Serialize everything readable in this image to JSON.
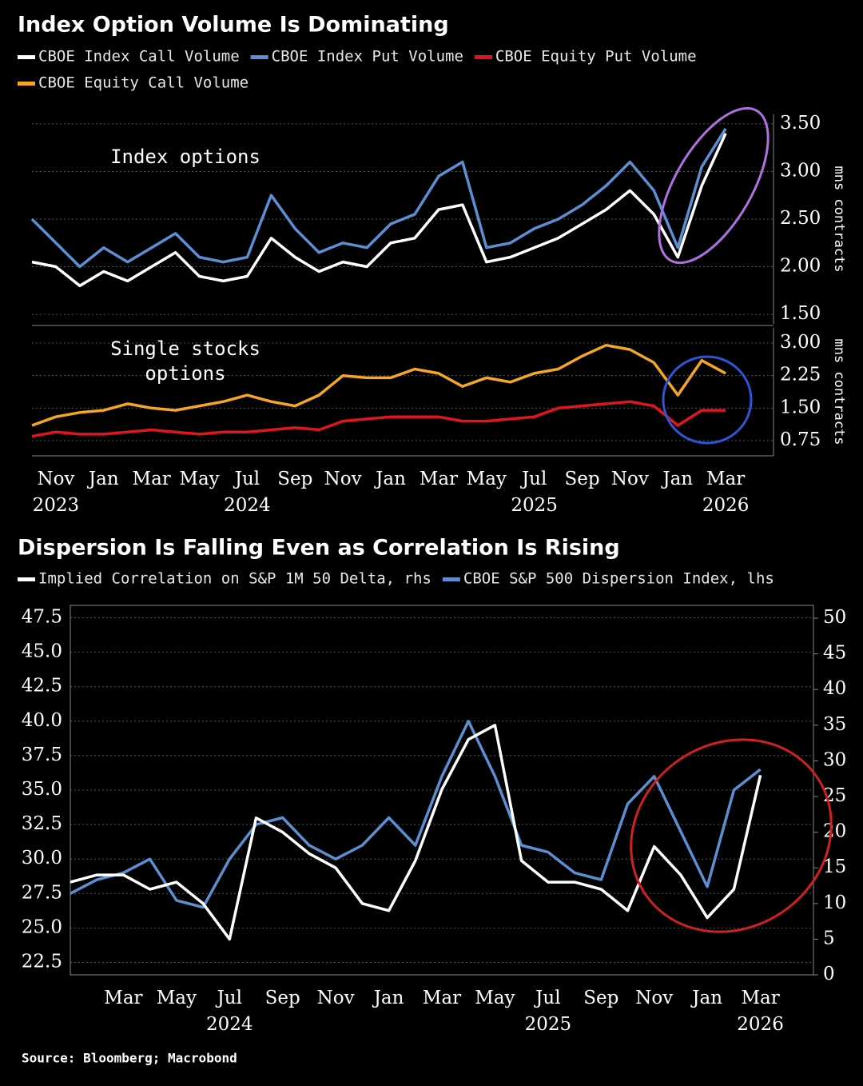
{
  "chart_data": [
    {
      "type": "line",
      "title": "Index Option Volume Is Dominating",
      "x": [
        "2023-10",
        "2023-11",
        "2023-12",
        "2024-01",
        "2024-02",
        "2024-03",
        "2024-04",
        "2024-05",
        "2024-06",
        "2024-07",
        "2024-08",
        "2024-09",
        "2024-10",
        "2024-11",
        "2024-12",
        "2025-01",
        "2025-02",
        "2025-03",
        "2025-04",
        "2025-05",
        "2025-06",
        "2025-07",
        "2025-08",
        "2025-09",
        "2025-10",
        "2025-11",
        "2025-12",
        "2026-01",
        "2026-02",
        "2026-03"
      ],
      "xlim": [
        "2023-10",
        "2026-05"
      ],
      "xticks": [
        {
          "value": "2023-11",
          "label": "Nov"
        },
        {
          "value": "2024-01",
          "label": "Jan"
        },
        {
          "value": "2024-03",
          "label": "Mar"
        },
        {
          "value": "2024-05",
          "label": "May"
        },
        {
          "value": "2024-07",
          "label": "Jul"
        },
        {
          "value": "2024-09",
          "label": "Sep"
        },
        {
          "value": "2024-11",
          "label": "Nov"
        },
        {
          "value": "2025-01",
          "label": "Jan"
        },
        {
          "value": "2025-03",
          "label": "Mar"
        },
        {
          "value": "2025-05",
          "label": "May"
        },
        {
          "value": "2025-07",
          "label": "Jul"
        },
        {
          "value": "2025-09",
          "label": "Sep"
        },
        {
          "value": "2025-11",
          "label": "Nov"
        },
        {
          "value": "2026-01",
          "label": "Jan"
        },
        {
          "value": "2026-03",
          "label": "Mar"
        }
      ],
      "year_labels": [
        {
          "value": "2023-11",
          "label": "2023"
        },
        {
          "value": "2024-07",
          "label": "2024"
        },
        {
          "value": "2025-07",
          "label": "2025"
        },
        {
          "value": "2026-03",
          "label": "2026"
        }
      ],
      "grid": true,
      "panels": [
        {
          "annotation": [
            "Index options"
          ],
          "y_label": "mns contracts",
          "ylim": [
            1.4,
            3.6
          ],
          "yticks": [
            {
              "value": 1.5,
              "label": "1.50"
            },
            {
              "value": 2,
              "label": "2.00"
            },
            {
              "value": 2.5,
              "label": "2.50"
            },
            {
              "value": 3,
              "label": "3.00"
            },
            {
              "value": 3.5,
              "label": "3.50"
            }
          ],
          "series": [
            {
              "name": "CBOE Index Put Volume",
              "color": "#5b8fd1",
              "values": [
                2.5,
                2.25,
                2.0,
                2.2,
                2.05,
                2.2,
                2.35,
                2.1,
                2.05,
                2.1,
                2.75,
                2.4,
                2.15,
                2.25,
                2.2,
                2.45,
                2.55,
                2.95,
                3.1,
                2.2,
                2.25,
                2.4,
                2.5,
                2.65,
                2.85,
                3.1,
                2.8,
                2.2,
                3.05,
                3.45
              ]
            },
            {
              "name": "CBOE Index Call Volume",
              "color": "#ffffff",
              "values": [
                2.05,
                2.0,
                1.8,
                1.95,
                1.85,
                2.0,
                2.15,
                1.9,
                1.85,
                1.9,
                2.3,
                2.1,
                1.95,
                2.05,
                2.0,
                2.25,
                2.3,
                2.6,
                2.65,
                2.05,
                2.1,
                2.2,
                2.3,
                2.45,
                2.6,
                2.8,
                2.55,
                2.1,
                2.85,
                3.4
              ]
            }
          ]
        },
        {
          "annotation": [
            "Single stocks",
            "options"
          ],
          "y_label": "mns contracts",
          "ylim": [
            0.4,
            3.35
          ],
          "yticks": [
            {
              "value": 0.75,
              "label": "0.75"
            },
            {
              "value": 1.5,
              "label": "1.50"
            },
            {
              "value": 2.25,
              "label": "2.25"
            },
            {
              "value": 3,
              "label": "3.00"
            }
          ],
          "series": [
            {
              "name": "CBOE Equity Put Volume",
              "color": "#e0161e",
              "values": [
                0.85,
                0.95,
                0.9,
                0.9,
                0.95,
                1.0,
                0.95,
                0.9,
                0.95,
                0.95,
                1.0,
                1.05,
                1.0,
                1.2,
                1.25,
                1.3,
                1.3,
                1.3,
                1.2,
                1.2,
                1.25,
                1.3,
                1.5,
                1.55,
                1.6,
                1.65,
                1.55,
                1.1,
                1.45,
                1.45
              ]
            },
            {
              "name": "CBOE Equity Call Volume",
              "color": "#f5a623",
              "values": [
                1.1,
                1.3,
                1.4,
                1.45,
                1.6,
                1.5,
                1.45,
                1.55,
                1.65,
                1.8,
                1.65,
                1.55,
                1.8,
                2.25,
                2.2,
                2.2,
                2.4,
                2.3,
                2.0,
                2.2,
                2.1,
                2.3,
                2.4,
                2.7,
                2.95,
                2.85,
                2.55,
                1.8,
                2.6,
                2.3
              ]
            }
          ]
        }
      ],
      "legend_order": [
        "0.0.1",
        "0.0.0",
        "0.1.0",
        "0.1.1"
      ]
    },
    {
      "type": "line",
      "title": "Dispersion Is Falling Even as Correlation Is Rising",
      "x": [
        "2024-01",
        "2024-02",
        "2024-03",
        "2024-04",
        "2024-05",
        "2024-06",
        "2024-07",
        "2024-08",
        "2024-09",
        "2024-10",
        "2024-11",
        "2024-12",
        "2025-01",
        "2025-02",
        "2025-03",
        "2025-04",
        "2025-05",
        "2025-06",
        "2025-07",
        "2025-08",
        "2025-09",
        "2025-10",
        "2025-11",
        "2025-12",
        "2026-01",
        "2026-02",
        "2026-03"
      ],
      "xlim": [
        "2024-01",
        "2026-05"
      ],
      "xticks": [
        {
          "value": "2024-03",
          "label": "Mar"
        },
        {
          "value": "2024-05",
          "label": "May"
        },
        {
          "value": "2024-07",
          "label": "Jul"
        },
        {
          "value": "2024-09",
          "label": "Sep"
        },
        {
          "value": "2024-11",
          "label": "Nov"
        },
        {
          "value": "2025-01",
          "label": "Jan"
        },
        {
          "value": "2025-03",
          "label": "Mar"
        },
        {
          "value": "2025-05",
          "label": "May"
        },
        {
          "value": "2025-07",
          "label": "Jul"
        },
        {
          "value": "2025-09",
          "label": "Sep"
        },
        {
          "value": "2025-11",
          "label": "Nov"
        },
        {
          "value": "2026-01",
          "label": "Jan"
        },
        {
          "value": "2026-03",
          "label": "Mar"
        }
      ],
      "year_labels": [
        {
          "value": "2024-07",
          "label": "2024"
        },
        {
          "value": "2025-07",
          "label": "2025"
        },
        {
          "value": "2026-03",
          "label": "2026"
        }
      ],
      "grid": true,
      "ylim": [
        21.6,
        48.4
      ],
      "yticks": [
        22.5,
        {
          "value": 25,
          "label": "25.0"
        },
        27.5,
        {
          "value": 30,
          "label": "30.0"
        },
        32.5,
        {
          "value": 35,
          "label": "35.0"
        },
        37.5,
        {
          "value": 40,
          "label": "40.0"
        },
        42.5,
        {
          "value": 45,
          "label": "45.0"
        },
        47.5
      ],
      "y2lim": [
        0,
        51.8
      ],
      "y2ticks": [
        0,
        5,
        10,
        15,
        20,
        25,
        30,
        35,
        40,
        45,
        50
      ],
      "series": [
        {
          "name": "Implied Correlation on S&P 1M 50 Delta, rhs",
          "color": "#ffffff",
          "axis": "y2",
          "values": [
            13,
            14,
            14,
            12,
            13,
            10,
            5,
            22,
            20,
            17,
            15,
            10,
            9,
            16,
            26,
            33,
            35,
            16,
            13,
            13,
            12,
            9,
            18,
            14,
            8,
            12,
            28
          ]
        },
        {
          "name": "CBOE S&P 500 Dispersion Index, lhs",
          "color": "#5b8fd1",
          "values": [
            27.5,
            28.5,
            29,
            30,
            27,
            26.5,
            30,
            32.5,
            33,
            31,
            30,
            31,
            33,
            31,
            36,
            40,
            36,
            31,
            30.5,
            29,
            28.5,
            34,
            36,
            32,
            28,
            35,
            36.5
          ]
        }
      ],
      "source": "Source: Bloomberg; Macrobond"
    }
  ]
}
